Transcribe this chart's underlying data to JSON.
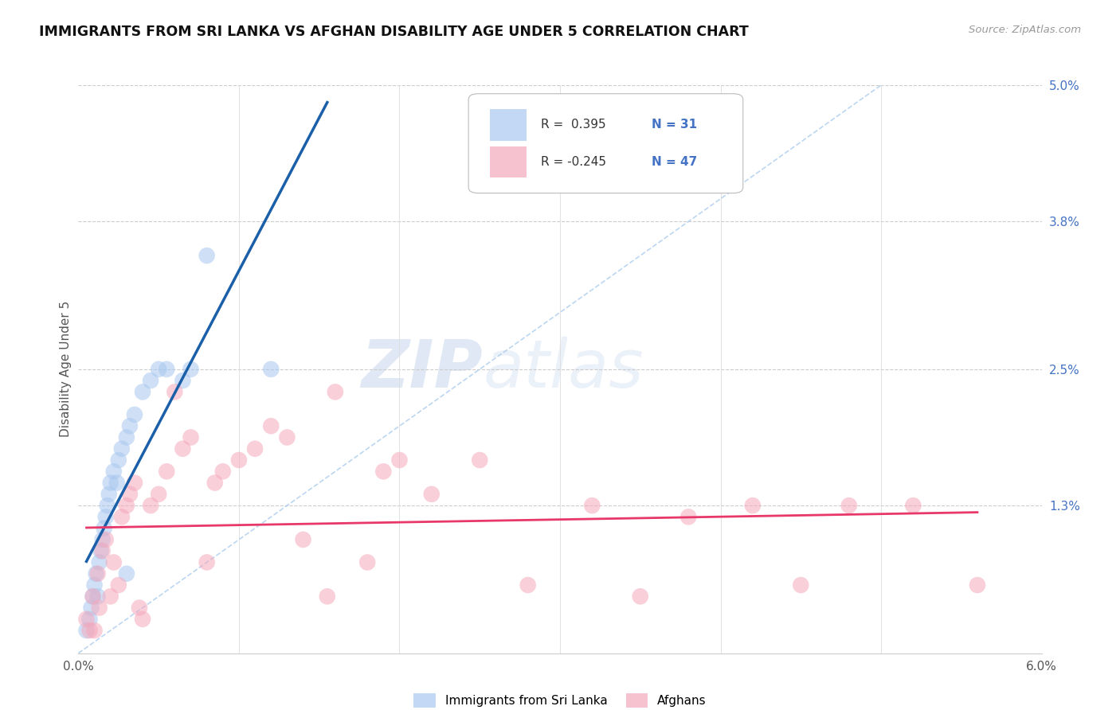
{
  "title": "IMMIGRANTS FROM SRI LANKA VS AFGHAN DISABILITY AGE UNDER 5 CORRELATION CHART",
  "source": "Source: ZipAtlas.com",
  "ylabel": "Disability Age Under 5",
  "xlim": [
    0.0,
    6.0
  ],
  "ylim": [
    0.0,
    5.0
  ],
  "yticks_right": [
    1.3,
    2.5,
    3.8,
    5.0
  ],
  "ytick_labels_right": [
    "1.3%",
    "2.5%",
    "3.8%",
    "5.0%"
  ],
  "legend_labels": [
    "Immigrants from Sri Lanka",
    "Afghans"
  ],
  "color_blue": "#A8C8F0",
  "color_pink": "#F5A8BC",
  "line_blue": "#1A5FA8",
  "line_pink": "#E8386A",
  "diag_color": "#AACCEE",
  "watermark_color": "#C8D8F0",
  "blue_x": [
    0.05,
    0.07,
    0.08,
    0.09,
    0.1,
    0.11,
    0.12,
    0.13,
    0.14,
    0.15,
    0.16,
    0.17,
    0.18,
    0.19,
    0.2,
    0.22,
    0.24,
    0.25,
    0.27,
    0.3,
    0.32,
    0.35,
    0.4,
    0.45,
    0.5,
    0.55,
    0.65,
    0.7,
    0.8,
    1.2,
    0.3
  ],
  "blue_y": [
    0.2,
    0.3,
    0.4,
    0.5,
    0.6,
    0.7,
    0.5,
    0.8,
    0.9,
    1.0,
    1.1,
    1.2,
    1.3,
    1.4,
    1.5,
    1.6,
    1.5,
    1.7,
    1.8,
    1.9,
    2.0,
    2.1,
    2.3,
    2.4,
    2.5,
    2.5,
    2.4,
    2.5,
    3.5,
    2.5,
    0.7
  ],
  "pink_x": [
    0.05,
    0.07,
    0.09,
    0.1,
    0.12,
    0.13,
    0.15,
    0.17,
    0.2,
    0.22,
    0.25,
    0.27,
    0.3,
    0.32,
    0.35,
    0.38,
    0.4,
    0.45,
    0.5,
    0.55,
    0.6,
    0.65,
    0.7,
    0.8,
    0.85,
    0.9,
    1.0,
    1.1,
    1.2,
    1.3,
    1.4,
    1.55,
    1.6,
    1.8,
    1.9,
    2.0,
    2.2,
    2.5,
    2.8,
    3.2,
    3.5,
    3.8,
    4.2,
    4.5,
    4.8,
    5.2,
    5.6
  ],
  "pink_y": [
    0.3,
    0.2,
    0.5,
    0.2,
    0.7,
    0.4,
    0.9,
    1.0,
    0.5,
    0.8,
    0.6,
    1.2,
    1.3,
    1.4,
    1.5,
    0.4,
    0.3,
    1.3,
    1.4,
    1.6,
    2.3,
    1.8,
    1.9,
    0.8,
    1.5,
    1.6,
    1.7,
    1.8,
    2.0,
    1.9,
    1.0,
    0.5,
    2.3,
    0.8,
    1.6,
    1.7,
    1.4,
    1.7,
    0.6,
    1.3,
    0.5,
    1.2,
    1.3,
    0.6,
    1.3,
    1.3,
    0.6
  ],
  "blue_line_x0": 0.05,
  "blue_line_x1": 1.55,
  "pink_line_x0": 0.05,
  "pink_line_x1": 5.6
}
